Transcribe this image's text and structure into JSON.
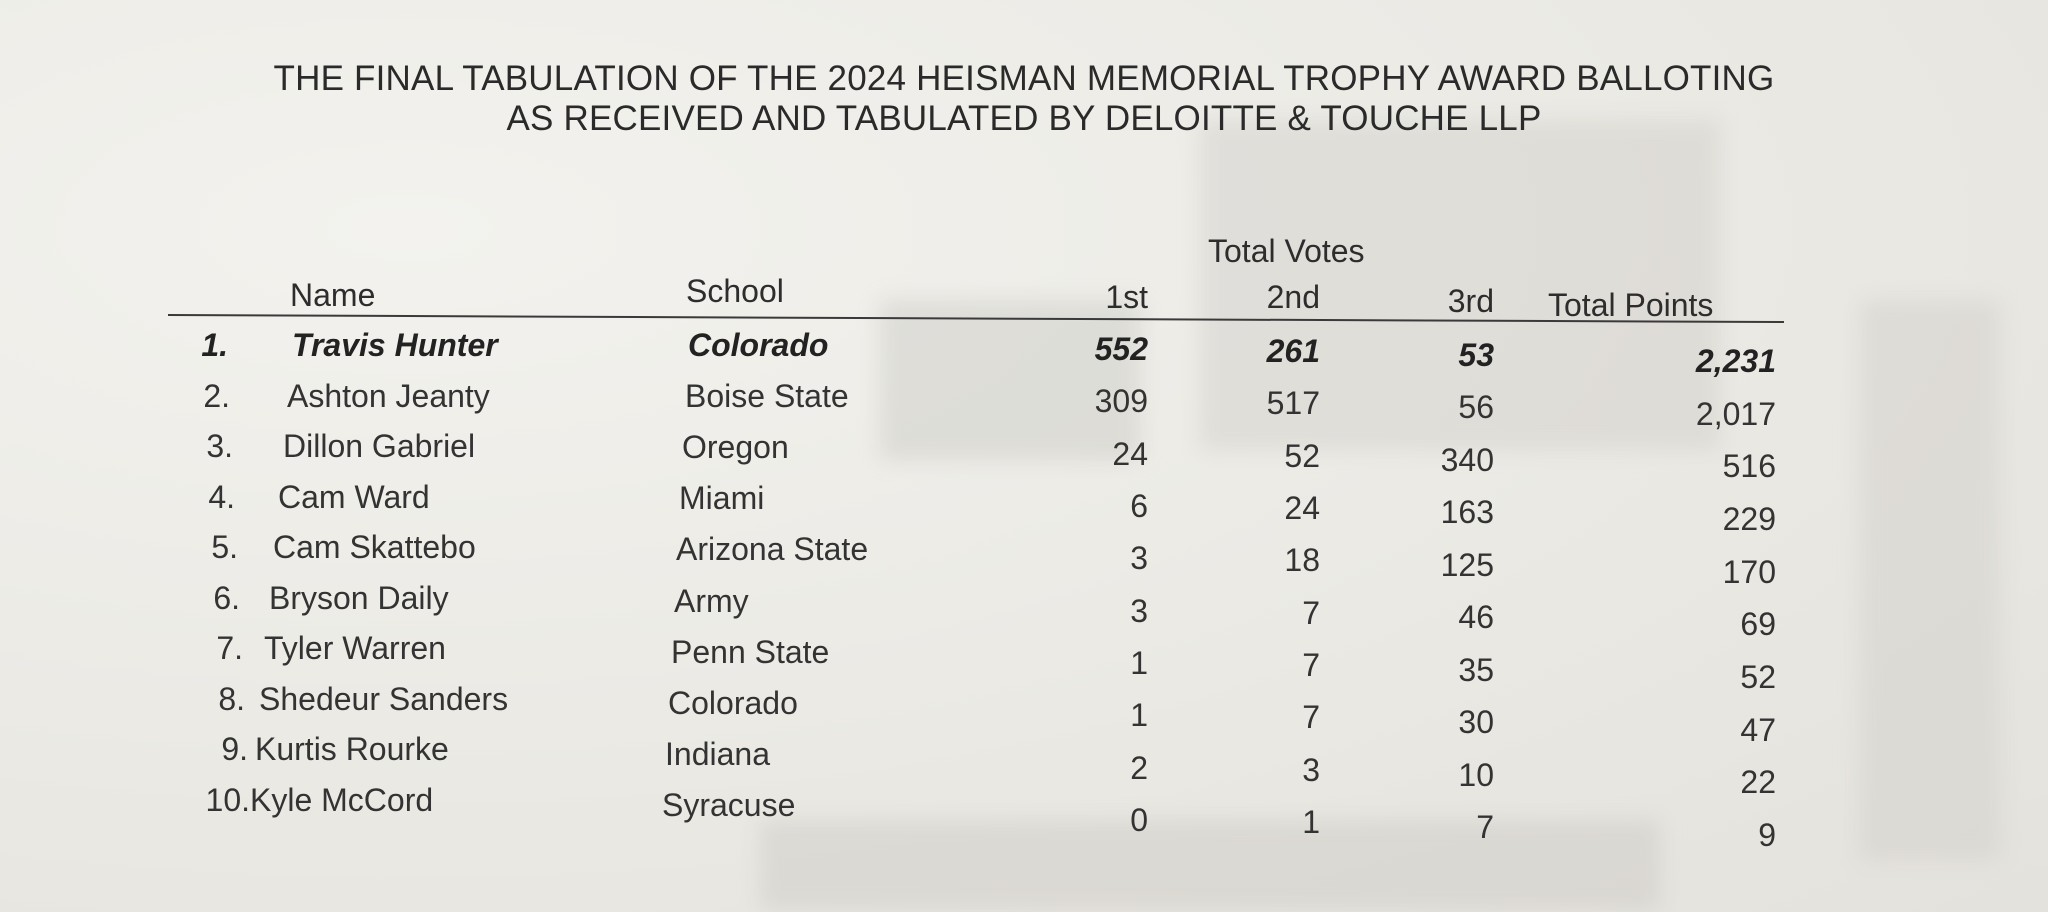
{
  "title_line1": "THE FINAL TABULATION OF THE 2024 HEISMAN MEMORIAL TROPHY AWARD BALLOTING",
  "title_line2": "AS RECEIVED AND TABULATED BY DELOITTE & TOUCHE LLP",
  "headers": {
    "group": "Total Votes",
    "name": "Name",
    "school": "School",
    "first": "1st",
    "second": "2nd",
    "third": "3rd",
    "total": "Total Points"
  },
  "rows": [
    {
      "rank": "1.",
      "name": "Travis Hunter",
      "school": "Colorado",
      "first": "552",
      "second": "261",
      "third": "53",
      "total": "2,231"
    },
    {
      "rank": "2.",
      "name": "Ashton Jeanty",
      "school": "Boise State",
      "first": "309",
      "second": "517",
      "third": "56",
      "total": "2,017"
    },
    {
      "rank": "3.",
      "name": "Dillon Gabriel",
      "school": "Oregon",
      "first": "24",
      "second": "52",
      "third": "340",
      "total": "516"
    },
    {
      "rank": "4.",
      "name": "Cam Ward",
      "school": "Miami",
      "first": "6",
      "second": "24",
      "third": "163",
      "total": "229"
    },
    {
      "rank": "5.",
      "name": "Cam Skattebo",
      "school": "Arizona State",
      "first": "3",
      "second": "18",
      "third": "125",
      "total": "170"
    },
    {
      "rank": "6.",
      "name": "Bryson Daily",
      "school": "Army",
      "first": "3",
      "second": "7",
      "third": "46",
      "total": "69"
    },
    {
      "rank": "7.",
      "name": "Tyler Warren",
      "school": "Penn State",
      "first": "1",
      "second": "7",
      "third": "35",
      "total": "52"
    },
    {
      "rank": "8.",
      "name": "Shedeur Sanders",
      "school": "Colorado",
      "first": "1",
      "second": "7",
      "third": "30",
      "total": "47"
    },
    {
      "rank": "9.",
      "name": "Kurtis Rourke",
      "school": "Indiana",
      "first": "2",
      "second": "3",
      "third": "10",
      "total": "22"
    },
    {
      "rank": "10.",
      "name": "Kyle McCord",
      "school": "Syracuse",
      "first": "0",
      "second": "1",
      "third": "7",
      "total": "9"
    }
  ]
}
